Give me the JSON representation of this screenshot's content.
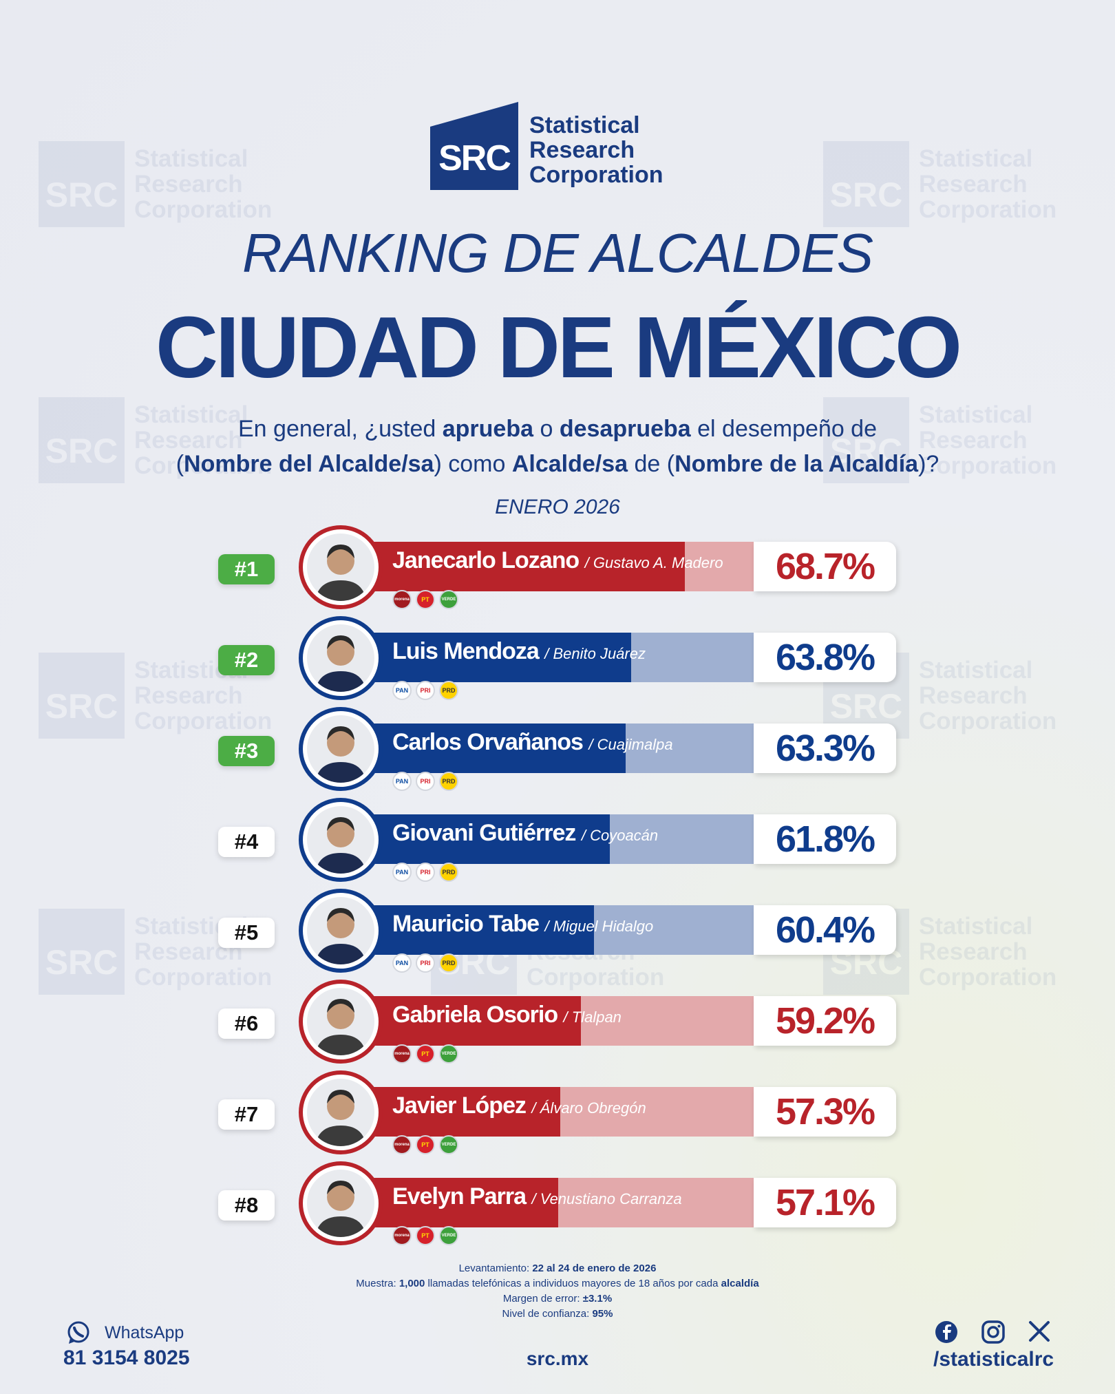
{
  "brand": {
    "logo_mark": "SRC",
    "line1": "Statistical",
    "line2": "Research",
    "line3": "Corporation",
    "color": "#1a3b80"
  },
  "title": "RANKING DE ALCALDES",
  "subtitle": "CIUDAD DE MÉXICO",
  "question": {
    "p1": "En general, ¿usted ",
    "b1": "aprueba",
    "p2": " o ",
    "b2": "desaprueba",
    "p3": " el desempeño de",
    "p4": "(",
    "b3": "Nombre del Alcalde/sa",
    "p5": ") como ",
    "b4": "Alcalde/sa",
    "p6": " de (",
    "b5": "Nombre de la Alcaldía",
    "p7": ")?"
  },
  "period": "ENERO 2026",
  "colors": {
    "red_dark": "#b8232a",
    "red_light": "#e3a9ab",
    "blue_dark": "#0f3c8c",
    "blue_light": "#9fb0d1",
    "green_rank": "#4cad45"
  },
  "chart_data": {
    "type": "bar",
    "orientation": "horizontal",
    "categories": [
      "Janecarlo Lozano",
      "Luis Mendoza",
      "Carlos Orvañanos",
      "Giovani Gutiérrez",
      "Mauricio Tabe",
      "Gabriela Osorio",
      "Javier López",
      "Evelyn Parra"
    ],
    "values": [
      68.7,
      63.8,
      63.3,
      61.8,
      60.4,
      59.2,
      57.3,
      57.1
    ],
    "unit": "%",
    "xlim": [
      0,
      100
    ],
    "rows": [
      {
        "rank": "#1",
        "name": "Janecarlo Lozano",
        "alcaldia": "/ Gustavo A. Madero",
        "value": 68.7,
        "label": "68.7%",
        "coalition": "red",
        "top": true,
        "parties": [
          "morena",
          "PT",
          "VERDE"
        ]
      },
      {
        "rank": "#2",
        "name": "Luis Mendoza",
        "alcaldia": "/ Benito Juárez",
        "value": 63.8,
        "label": "63.8%",
        "coalition": "blue",
        "top": true,
        "parties": [
          "PAN",
          "PRI",
          "PRD"
        ]
      },
      {
        "rank": "#3",
        "name": "Carlos Orvañanos",
        "alcaldia": "/ Cuajimalpa",
        "value": 63.3,
        "label": "63.3%",
        "coalition": "blue",
        "top": true,
        "parties": [
          "PAN",
          "PRI",
          "PRD"
        ]
      },
      {
        "rank": "#4",
        "name": "Giovani Gutiérrez",
        "alcaldia": "/ Coyoacán",
        "value": 61.8,
        "label": "61.8%",
        "coalition": "blue",
        "top": false,
        "parties": [
          "PAN",
          "PRI",
          "PRD"
        ]
      },
      {
        "rank": "#5",
        "name": "Mauricio Tabe",
        "alcaldia": "/ Miguel Hidalgo",
        "value": 60.4,
        "label": "60.4%",
        "coalition": "blue",
        "top": false,
        "parties": [
          "PAN",
          "PRI",
          "PRD"
        ]
      },
      {
        "rank": "#6",
        "name": "Gabriela Osorio",
        "alcaldia": "/ Tlalpan",
        "value": 59.2,
        "label": "59.2%",
        "coalition": "red",
        "top": false,
        "parties": [
          "morena",
          "PT",
          "VERDE"
        ]
      },
      {
        "rank": "#7",
        "name": "Javier López",
        "alcaldia": "/ Álvaro Obregón",
        "value": 57.3,
        "label": "57.3%",
        "coalition": "red",
        "top": false,
        "parties": [
          "morena",
          "PT",
          "VERDE"
        ]
      },
      {
        "rank": "#8",
        "name": "Evelyn Parra",
        "alcaldia": "/ Venustiano Carranza",
        "value": 57.1,
        "label": "57.1%",
        "coalition": "red",
        "top": false,
        "parties": [
          "morena",
          "PT",
          "VERDE"
        ]
      }
    ]
  },
  "methodology": {
    "l1a": "Levantamiento: ",
    "l1b": "22 al 24 de enero de 2026",
    "l2a": "Muestra: ",
    "l2b": "1,000",
    "l2c": " llamadas telefónicas a individuos mayores de 18 años por cada ",
    "l2d": "alcaldía",
    "l3a": "Margen de error: ",
    "l3b": "±3.1%",
    "l4a": "Nivel de confianza: ",
    "l4b": "95%"
  },
  "footer": {
    "whatsapp_label": "WhatsApp",
    "phone": "81 3154 8025",
    "website": "src.mx",
    "handle": "/statisticalrc",
    "icons": [
      "whatsapp-icon",
      "facebook-icon",
      "instagram-icon",
      "x-icon"
    ]
  }
}
